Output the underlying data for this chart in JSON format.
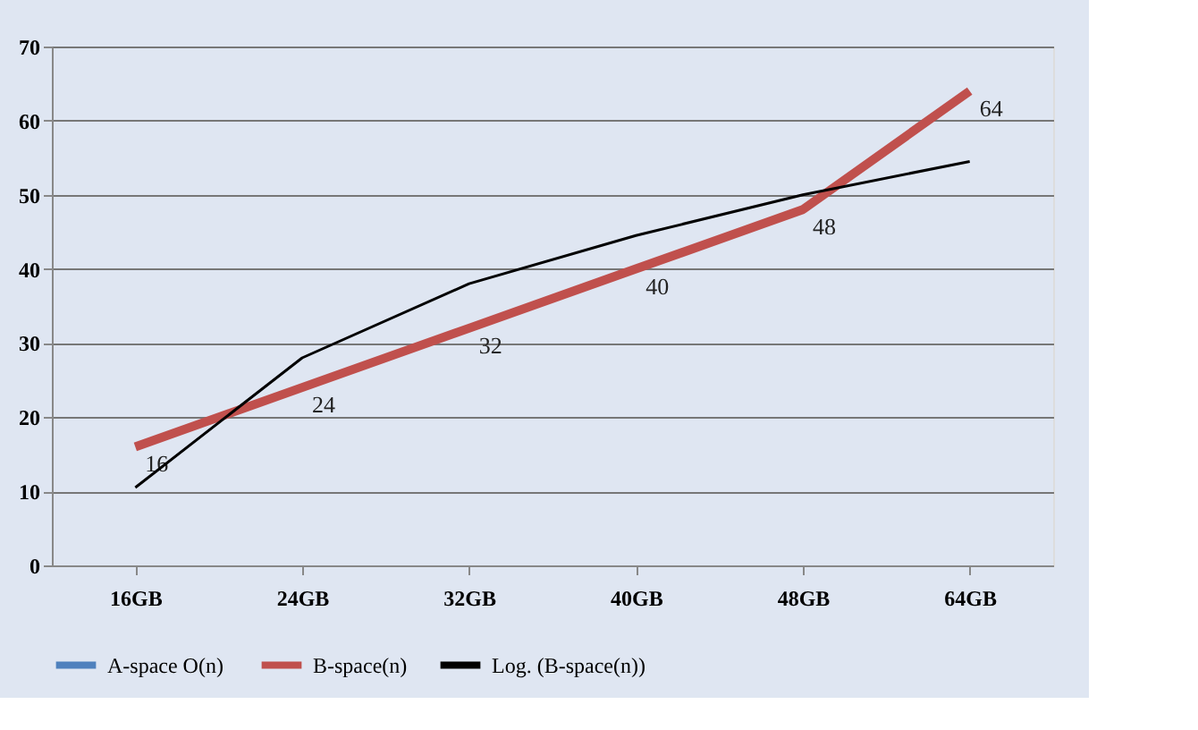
{
  "chart_data": {
    "type": "line",
    "categories": [
      "16GB",
      "24GB",
      "32GB",
      "40GB",
      "48GB",
      "64GB"
    ],
    "ylim": [
      0,
      70
    ],
    "yticks": [
      0,
      10,
      20,
      30,
      40,
      50,
      60,
      70
    ],
    "grid": "y",
    "legend": "bottom",
    "marker": "none",
    "series": [
      {
        "name": "A-space  O(n)",
        "color": "#4f81bd",
        "values": [
          null,
          null,
          null,
          null,
          null,
          null
        ]
      },
      {
        "name": "B-space(n)",
        "color": "#c0504d",
        "values": [
          16,
          24,
          32,
          40,
          48,
          64
        ],
        "data_labels": true
      },
      {
        "name": "Log. (B-space(n))",
        "color": "#000000",
        "values": [
          10.5,
          28,
          38,
          44.5,
          50,
          54.5
        ]
      }
    ]
  }
}
